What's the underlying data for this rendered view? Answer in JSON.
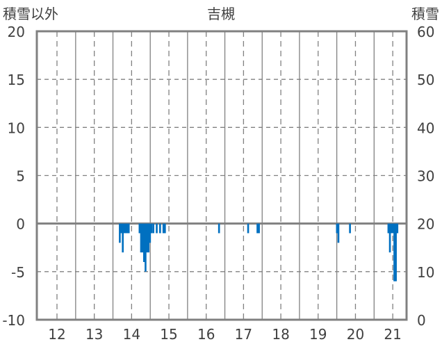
{
  "chart_data": {
    "type": "bar",
    "title": "吉槻",
    "ylabel_left": "積雪以外",
    "ylabel_right": "積雪",
    "ylim_left": [
      -10,
      20
    ],
    "ylim_right": [
      0,
      60
    ],
    "yticks_left": [
      "20",
      "15",
      "10",
      "5",
      "0",
      "-5",
      "-10"
    ],
    "yticks_right": [
      "60",
      "50",
      "40",
      "30",
      "20",
      "10",
      "0"
    ],
    "xlim": [
      11.46,
      21.37
    ],
    "xticks": [
      "12",
      "13",
      "14",
      "15",
      "16",
      "17",
      "18",
      "19",
      "20",
      "21"
    ],
    "grid": true,
    "colors": {
      "bars": "#0070c0",
      "snow_depth": "#7030a0",
      "frame": "#808080"
    },
    "series": [
      {
        "name": "積雪以外",
        "kind": "bar",
        "points": [
          [
            13.68,
            -2
          ],
          [
            13.72,
            -1
          ],
          [
            13.76,
            -3
          ],
          [
            13.8,
            -1
          ],
          [
            13.84,
            -1
          ],
          [
            13.88,
            -1
          ],
          [
            13.92,
            -1
          ],
          [
            14.21,
            -1
          ],
          [
            14.25,
            -3
          ],
          [
            14.29,
            -3
          ],
          [
            14.33,
            -4
          ],
          [
            14.37,
            -5
          ],
          [
            14.41,
            -3
          ],
          [
            14.45,
            -3
          ],
          [
            14.49,
            -2
          ],
          [
            14.53,
            -1
          ],
          [
            14.58,
            -1
          ],
          [
            14.67,
            -1
          ],
          [
            14.76,
            -1
          ],
          [
            14.85,
            -1
          ],
          [
            14.89,
            -1
          ],
          [
            16.34,
            -1
          ],
          [
            17.12,
            -1
          ],
          [
            17.37,
            -1
          ],
          [
            17.41,
            -1
          ],
          [
            19.5,
            -1
          ],
          [
            19.54,
            -2
          ],
          [
            19.85,
            -1
          ],
          [
            20.88,
            -1
          ],
          [
            20.92,
            -3
          ],
          [
            20.96,
            -1
          ],
          [
            21.0,
            -1
          ],
          [
            21.04,
            -6
          ],
          [
            21.08,
            -6
          ],
          [
            21.12,
            -1
          ]
        ]
      },
      {
        "name": "積雪",
        "kind": "line",
        "x": [
          11.46,
          21.37
        ],
        "values": [
          0,
          0
        ]
      }
    ]
  }
}
